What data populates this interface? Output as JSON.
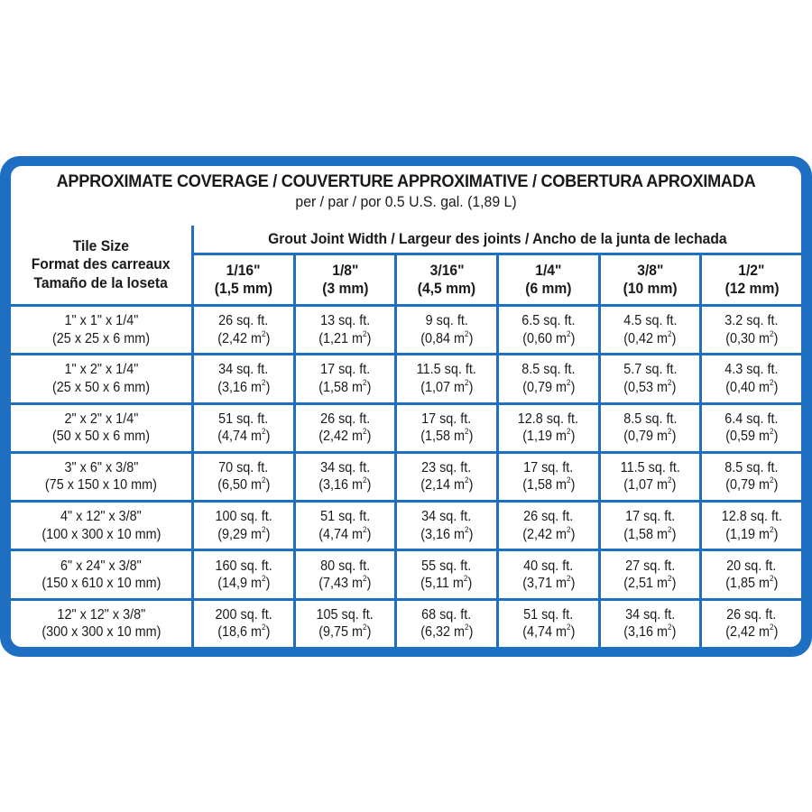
{
  "title": "APPROXIMATE COVERAGE / COUVERTURE APPROXIMATIVE / COBERTURA APROXIMADA",
  "subtitle": "per / par / por 0.5 U.S. gal. (1,89 L)",
  "tile_size_header": [
    "Tile Size",
    "Format des carreaux",
    "Tamaño de la loseta"
  ],
  "grout_header": "Grout Joint Width / Largeur des joints / Ancho de la junta de lechada",
  "columns": [
    {
      "in": "1/16\"",
      "mm": "(1,5 mm)"
    },
    {
      "in": "1/8\"",
      "mm": "(3 mm)"
    },
    {
      "in": "3/16\"",
      "mm": "(4,5 mm)"
    },
    {
      "in": "1/4\"",
      "mm": "(6 mm)"
    },
    {
      "in": "3/8\"",
      "mm": "(10 mm)"
    },
    {
      "in": "1/2\"",
      "mm": "(12 mm)"
    }
  ],
  "rows": [
    {
      "size_in": "1\" x 1\" x 1/4\"",
      "size_mm": "(25 x 25 x 6 mm)",
      "values": [
        [
          "26 sq. ft.",
          "(2,42 m",
          "2",
          ")"
        ],
        [
          "13 sq. ft.",
          "(1,21 m",
          "2",
          ")"
        ],
        [
          "9 sq. ft.",
          "(0,84 m",
          "2",
          ")"
        ],
        [
          "6.5 sq. ft.",
          "(0,60 m",
          "2",
          ")"
        ],
        [
          "4.5 sq. ft.",
          "(0,42 m",
          "2",
          ")"
        ],
        [
          "3.2 sq. ft.",
          "(0,30 m",
          "2",
          ")"
        ]
      ]
    },
    {
      "size_in": "1\" x 2\" x 1/4\"",
      "size_mm": "(25 x 50 x 6 mm)",
      "values": [
        [
          "34 sq. ft.",
          "(3,16 m",
          "2",
          ")"
        ],
        [
          "17 sq. ft.",
          "(1,58 m",
          "2",
          ")"
        ],
        [
          "11.5 sq. ft.",
          "(1,07 m",
          "2",
          ")"
        ],
        [
          "8.5 sq. ft.",
          "(0,79 m",
          "2",
          ")"
        ],
        [
          "5.7 sq. ft.",
          "(0,53 m",
          "2",
          ")"
        ],
        [
          "4.3 sq. ft.",
          "(0,40 m",
          "2",
          ")"
        ]
      ]
    },
    {
      "size_in": "2\" x 2\" x 1/4\"",
      "size_mm": "(50 x 50 x 6 mm)",
      "values": [
        [
          "51 sq. ft.",
          "(4,74 m",
          "2",
          ")"
        ],
        [
          "26 sq. ft.",
          "(2,42 m",
          "2",
          ")"
        ],
        [
          "17 sq. ft.",
          "(1,58 m",
          "2",
          ")"
        ],
        [
          "12.8 sq. ft.",
          "(1,19 m",
          "2",
          ")"
        ],
        [
          "8.5 sq. ft.",
          "(0,79 m",
          "2",
          ")"
        ],
        [
          "6.4 sq. ft.",
          "(0,59 m",
          "2",
          ")"
        ]
      ]
    },
    {
      "size_in": "3\" x 6\" x 3/8\"",
      "size_mm": "(75 x 150 x 10 mm)",
      "values": [
        [
          "70 sq. ft.",
          "(6,50 m",
          "2",
          ")"
        ],
        [
          "34 sq. ft.",
          "(3,16 m",
          "2",
          ")"
        ],
        [
          "23 sq. ft.",
          "(2,14 m",
          "2",
          ")"
        ],
        [
          "17 sq. ft.",
          "(1,58 m",
          "2",
          ")"
        ],
        [
          "11.5 sq. ft.",
          "(1,07 m",
          "2",
          ")"
        ],
        [
          "8.5 sq. ft.",
          "(0,79 m",
          "2",
          ")"
        ]
      ]
    },
    {
      "size_in": "4\" x 12\" x 3/8\"",
      "size_mm": "(100 x 300 x 10 mm)",
      "values": [
        [
          "100 sq. ft.",
          "(9,29 m",
          "2",
          ")"
        ],
        [
          "51 sq. ft.",
          "(4,74 m",
          "2",
          ")"
        ],
        [
          "34 sq. ft.",
          "(3,16 m",
          "2",
          ")"
        ],
        [
          "26 sq. ft.",
          "(2,42 m",
          "2",
          ")"
        ],
        [
          "17 sq. ft.",
          "(1,58 m",
          "2",
          ")"
        ],
        [
          "12.8 sq. ft.",
          "(1,19 m",
          "2",
          ")"
        ]
      ]
    },
    {
      "size_in": "6\" x 24\" x 3/8\"",
      "size_mm": "(150 x 610 x 10 mm)",
      "values": [
        [
          "160 sq. ft.",
          "(14,9 m",
          "2",
          ")"
        ],
        [
          "80 sq. ft.",
          "(7,43 m",
          "2",
          ")"
        ],
        [
          "55 sq. ft.",
          "(5,11 m",
          "2",
          ")"
        ],
        [
          "40 sq. ft.",
          "(3,71 m",
          "2",
          ")"
        ],
        [
          "27 sq. ft.",
          "(2,51 m",
          "2",
          ")"
        ],
        [
          "20 sq. ft.",
          "(1,85 m",
          "2",
          ")"
        ]
      ]
    },
    {
      "size_in": "12\" x 12\" x 3/8\"",
      "size_mm": "(300 x 300 x 10 mm)",
      "values": [
        [
          "200 sq. ft.",
          "(18,6 m",
          "2",
          ")"
        ],
        [
          "105 sq. ft.",
          "(9,75 m",
          "2",
          ")"
        ],
        [
          "68 sq. ft.",
          "(6,32 m",
          "2",
          ")"
        ],
        [
          "51 sq. ft.",
          "(4,74 m",
          "2",
          ")"
        ],
        [
          "34 sq. ft.",
          "(3,16 m",
          "2",
          ")"
        ],
        [
          "26 sq. ft.",
          "(2,42 m",
          "2",
          ")"
        ]
      ]
    }
  ],
  "colors": {
    "border": "#1e6fc2",
    "background": "#ffffff",
    "text": "#1a1a1a"
  }
}
